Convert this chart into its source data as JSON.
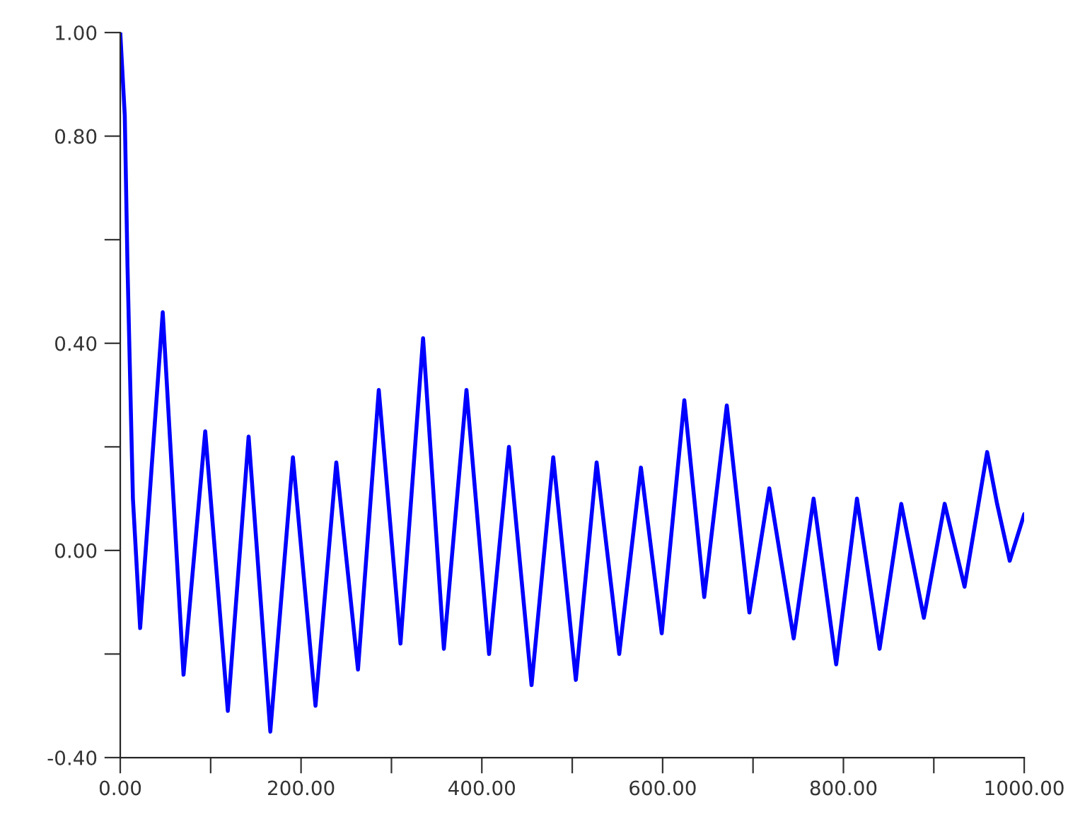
{
  "chart_data": {
    "type": "line",
    "x": [
      0,
      5,
      8,
      14,
      22,
      47,
      70,
      94,
      119,
      142,
      166,
      191,
      216,
      239,
      263,
      286,
      310,
      335,
      358,
      383,
      408,
      430,
      455,
      479,
      504,
      527,
      552,
      576,
      599,
      624,
      646,
      671,
      696,
      718,
      745,
      767,
      792,
      815,
      840,
      864,
      889,
      912,
      934,
      959,
      970,
      984,
      1000
    ],
    "series": [
      {
        "color": "#0000ff",
        "values": [
          1.0,
          0.84,
          0.55,
          0.1,
          -0.15,
          0.46,
          -0.24,
          0.23,
          -0.31,
          0.22,
          -0.35,
          0.18,
          -0.3,
          0.17,
          -0.23,
          0.31,
          -0.18,
          0.41,
          -0.19,
          0.31,
          -0.2,
          0.2,
          -0.26,
          0.18,
          -0.25,
          0.17,
          -0.2,
          0.16,
          -0.16,
          0.29,
          -0.09,
          0.28,
          -0.12,
          0.12,
          -0.17,
          0.1,
          -0.22,
          0.1,
          -0.19,
          0.09,
          -0.13,
          0.09,
          -0.07,
          0.19,
          0.09,
          -0.02,
          0.07
        ]
      }
    ],
    "xlim": [
      0,
      1000
    ],
    "xticks": [
      {
        "value": 0,
        "label": "0.00"
      },
      {
        "value": 100,
        "label": null
      },
      {
        "value": 200,
        "label": "200.00"
      },
      {
        "value": 300,
        "label": null
      },
      {
        "value": 400,
        "label": "400.00"
      },
      {
        "value": 500,
        "label": null
      },
      {
        "value": 600,
        "label": "600.00"
      },
      {
        "value": 700,
        "label": null
      },
      {
        "value": 800,
        "label": "800.00"
      },
      {
        "value": 900,
        "label": null
      },
      {
        "value": 1000,
        "label": "1000.00"
      }
    ],
    "ylim": [
      -0.4,
      1.0
    ],
    "yticks": [
      {
        "value": -0.4,
        "label": "-0.40"
      },
      {
        "value": -0.2,
        "label": null
      },
      {
        "value": 0,
        "label": "0.00"
      },
      {
        "value": 0.2,
        "label": null
      },
      {
        "value": 0.4,
        "label": "0.40"
      },
      {
        "value": 0.6,
        "label": null
      },
      {
        "value": 0.8,
        "label": "0.80"
      },
      {
        "value": 1.0,
        "label": "1.00"
      }
    ],
    "grid": false,
    "legend": false,
    "marker": "none",
    "line_style": "solid"
  }
}
